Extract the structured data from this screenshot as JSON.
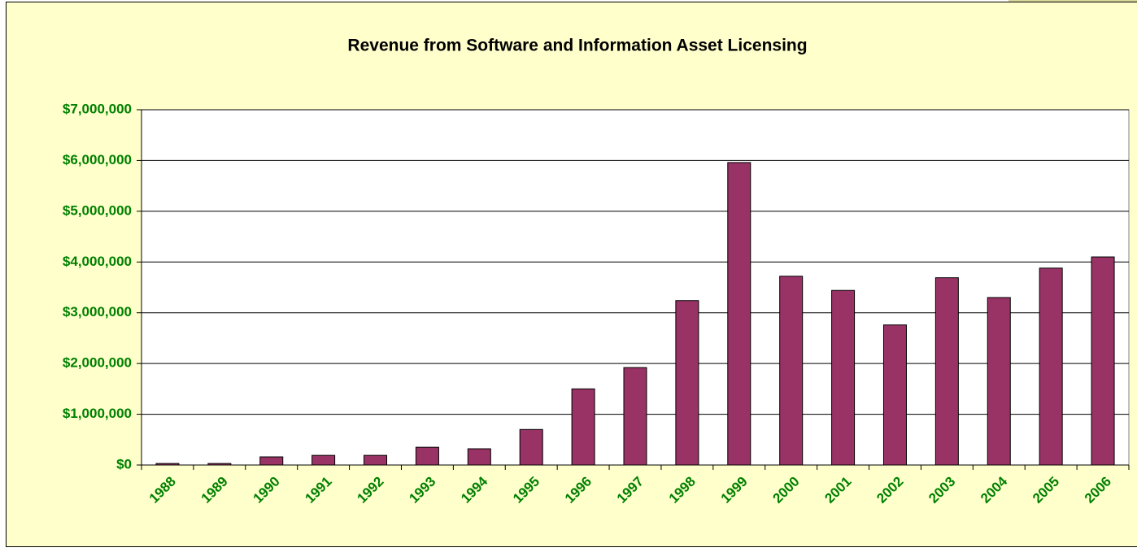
{
  "chart_data": {
    "type": "bar",
    "title": "Revenue from Software and Information Asset Licensing",
    "categories": [
      "1988",
      "1989",
      "1990",
      "1991",
      "1992",
      "1993",
      "1994",
      "1995",
      "1996",
      "1997",
      "1998",
      "1999",
      "2000",
      "2001",
      "2002",
      "2003",
      "2004",
      "2005",
      "2006"
    ],
    "values": [
      30000,
      30000,
      160000,
      190000,
      190000,
      350000,
      320000,
      700000,
      1500000,
      1920000,
      3240000,
      5960000,
      3720000,
      3440000,
      2760000,
      3690000,
      3300000,
      3880000,
      4100000
    ],
    "color": "#993366",
    "ylim": [
      0,
      7000000
    ],
    "yticks": [
      {
        "value": 0,
        "label": "$0"
      },
      {
        "value": 1000000,
        "label": "$1,000,000"
      },
      {
        "value": 2000000,
        "label": "$2,000,000"
      },
      {
        "value": 3000000,
        "label": "$3,000,000"
      },
      {
        "value": 4000000,
        "label": "$4,000,000"
      },
      {
        "value": 5000000,
        "label": "$5,000,000"
      },
      {
        "value": 6000000,
        "label": "$6,000,000"
      },
      {
        "value": 7000000,
        "label": "$7,000,000"
      }
    ],
    "grid": true
  }
}
